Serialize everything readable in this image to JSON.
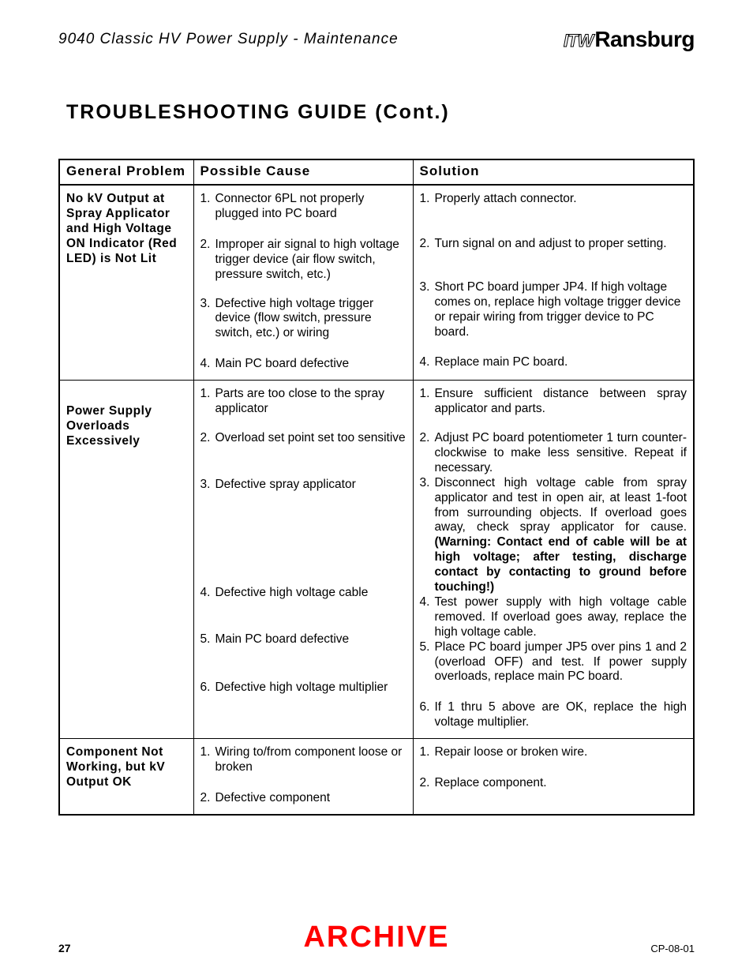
{
  "header": {
    "doc_title": "9040 Classic HV Power Supply - Maintenance",
    "brand_prefix": "ITW",
    "brand_name": "Ransburg"
  },
  "section_title": "TROUBLESHOOTING  GUIDE  (Cont.)",
  "table": {
    "headers": {
      "c1": "General Problem",
      "c2": "Possible  Cause",
      "c3": "Solution"
    },
    "rows": [
      {
        "problem": "No kV Output at Spray Applicator and High Voltage ON Indicator (Red LED) is Not Lit",
        "causes": [
          {
            "n": "1.",
            "t": "Connector 6PL not properly plugged into PC board"
          },
          {
            "n": "2.",
            "t": "Improper air signal to high voltage trigger device (air flow switch, pressure switch, etc.)"
          },
          {
            "n": "3.",
            "t": "Defective high voltage trigger device (flow switch, pressure switch, etc.) or wiring"
          },
          {
            "n": "4.",
            "t": "Main PC board defective"
          }
        ],
        "solutions": [
          {
            "n": "1.",
            "t": "Properly attach connector."
          },
          {
            "n": "2.",
            "t": "Turn signal on and adjust to proper setting."
          },
          {
            "n": "3.",
            "t": "Short PC board jumper JP4.  If high voltage comes on, replace high voltage trigger device or repair wiring from trigger device to PC board."
          },
          {
            "n": "4.",
            "t": "Replace main PC board."
          }
        ]
      },
      {
        "problem": "Power Supply Overloads Excessively",
        "causes": [
          {
            "n": "1.",
            "t": "Parts are too close to the spray applicator"
          },
          {
            "n": "2.",
            "t": "Overload set point set too sensitive"
          },
          {
            "n": "3.",
            "t": "Defective spray applicator"
          },
          {
            "n": "4.",
            "t": "Defective high voltage cable"
          },
          {
            "n": "5.",
            "t": "Main PC board defective"
          },
          {
            "n": "6.",
            "t": "Defective high voltage multiplier"
          }
        ],
        "solutions": [
          {
            "n": "1.",
            "t": "Ensure sufficient distance between spray applicator and parts."
          },
          {
            "n": "2.",
            "t": "Adjust PC board potentiometer 1 turn counter-clockwise to make less sensitive.  Repeat if necessary."
          },
          {
            "n": "3.",
            "t": "Disconnect high voltage  cable from spray applicator  and test in open air, at least 1-foot from surrounding objects.  If overload goes away, check spray applicator for cause.",
            "b": "(Warning: Contact end of cable will be at high voltage; after testing, discharge contact by contacting to ground before touching!)"
          },
          {
            "n": "4.",
            "t": "Test power supply with high voltage cable removed.  If overload goes away, replace the high voltage cable."
          },
          {
            "n": "5.",
            "t": "Place PC board jumper JP5 over pins 1 and 2 (overload OFF) and test.  If power supply overloads, replace main PC board."
          },
          {
            "n": "6.",
            "t": "If 1 thru 5 above are OK, replace the high voltage multiplier."
          }
        ]
      },
      {
        "problem": "Component Not Working, but kV Output OK",
        "causes": [
          {
            "n": "1.",
            "t": "Wiring to/from component loose or broken"
          },
          {
            "n": "2.",
            "t": "Defective component"
          }
        ],
        "solutions": [
          {
            "n": "1.",
            "t": "Repair loose or broken wire."
          },
          {
            "n": "2.",
            "t": "Replace component."
          }
        ]
      }
    ]
  },
  "footer": {
    "page": "27",
    "watermark": "ARCHIVE",
    "doc_code": "CP-08-01"
  }
}
